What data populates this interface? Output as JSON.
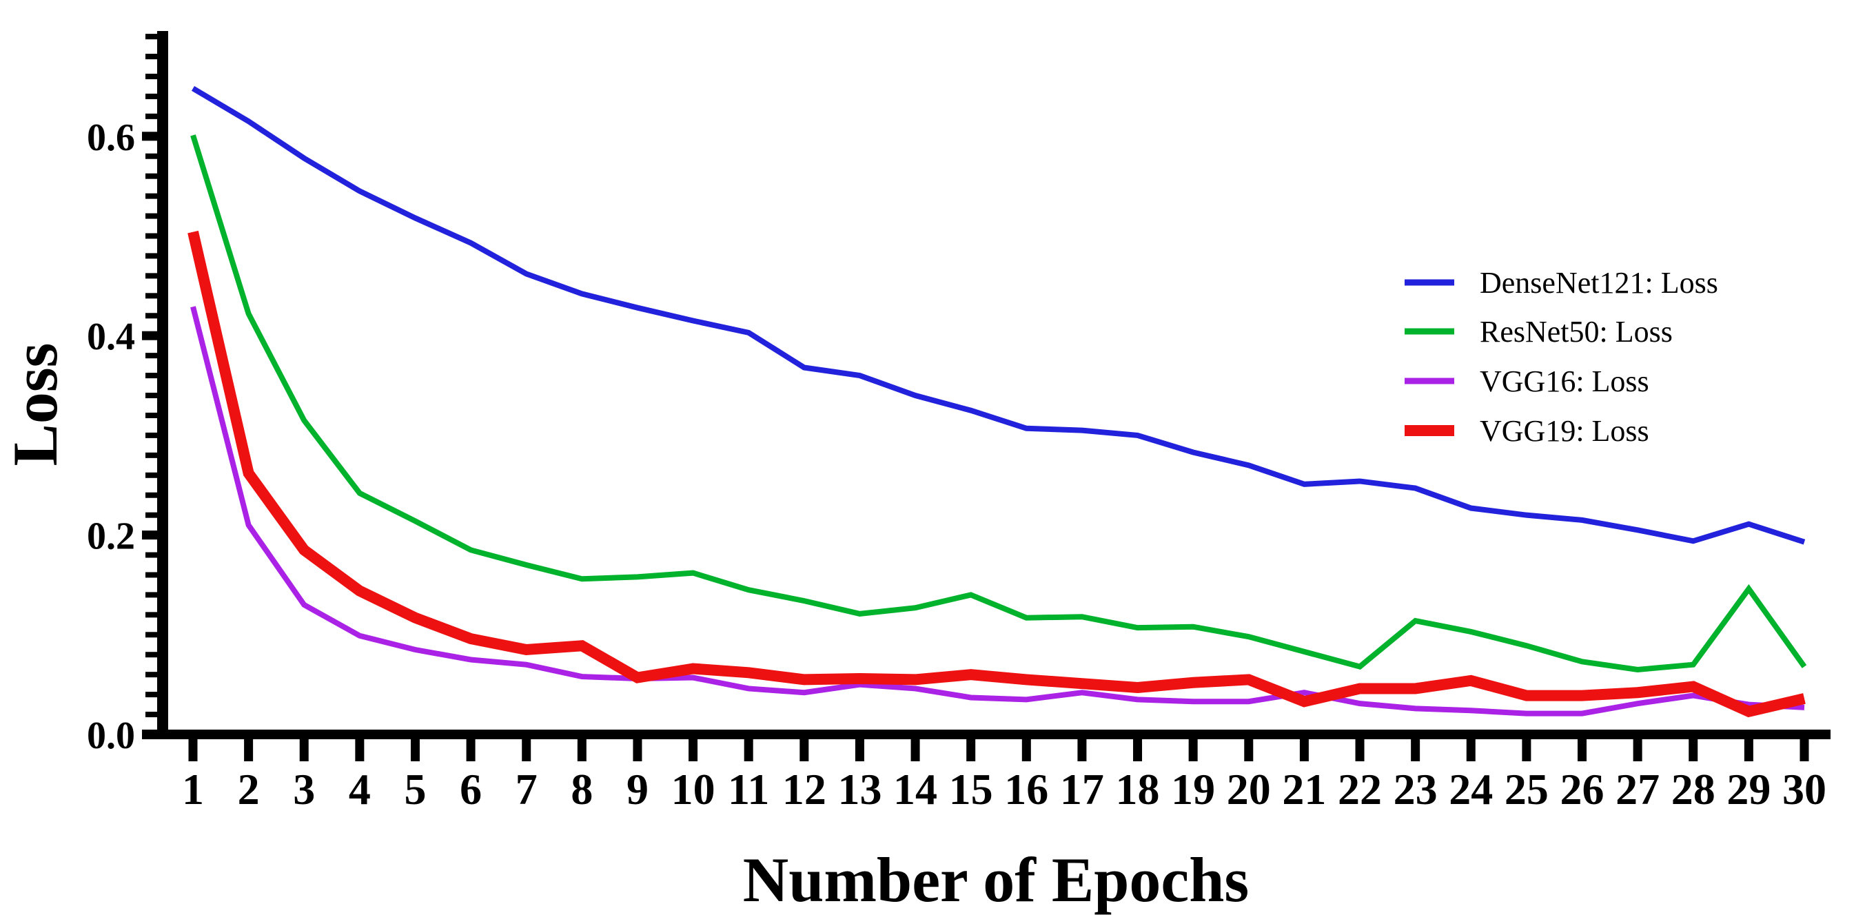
{
  "chart_data": {
    "type": "line",
    "title": "",
    "xlabel": "Number of Epochs",
    "ylabel": "Loss",
    "x": [
      1,
      2,
      3,
      4,
      5,
      6,
      7,
      8,
      9,
      10,
      11,
      12,
      13,
      14,
      15,
      16,
      17,
      18,
      19,
      20,
      21,
      22,
      23,
      24,
      25,
      26,
      27,
      28,
      29,
      30
    ],
    "xlim": [
      1,
      30
    ],
    "ylim": [
      0,
      0.7
    ],
    "y_major_ticks": [
      0.0,
      0.2,
      0.4,
      0.6
    ],
    "y_tick_labels": [
      "0.0",
      "0.2",
      "0.4",
      "0.6"
    ],
    "y_minor_step": 0.02,
    "grid": false,
    "legend_position": "inside-right",
    "axis_color": "#000000",
    "series": [
      {
        "name": "DenseNet121: Loss",
        "color": "#2222dd",
        "width": 8,
        "values": [
          0.648,
          0.615,
          0.578,
          0.545,
          0.518,
          0.493,
          0.462,
          0.442,
          0.428,
          0.415,
          0.403,
          0.368,
          0.36,
          0.34,
          0.325,
          0.307,
          0.305,
          0.3,
          0.283,
          0.27,
          0.251,
          0.254,
          0.247,
          0.227,
          0.22,
          0.215,
          0.205,
          0.194,
          0.211,
          0.193
        ]
      },
      {
        "name": "ResNet50: Loss",
        "color": "#00b22c",
        "width": 8,
        "values": [
          0.601,
          0.422,
          0.315,
          0.242,
          0.214,
          0.185,
          0.17,
          0.156,
          0.158,
          0.162,
          0.145,
          0.134,
          0.121,
          0.127,
          0.14,
          0.117,
          0.118,
          0.107,
          0.108,
          0.098,
          0.083,
          0.068,
          0.114,
          0.103,
          0.089,
          0.073,
          0.065,
          0.07,
          0.146,
          0.068
        ]
      },
      {
        "name": "VGG16: Loss",
        "color": "#aa22e6",
        "width": 8,
        "values": [
          0.429,
          0.21,
          0.13,
          0.099,
          0.085,
          0.075,
          0.07,
          0.058,
          0.056,
          0.057,
          0.046,
          0.042,
          0.05,
          0.046,
          0.037,
          0.035,
          0.042,
          0.035,
          0.033,
          0.033,
          0.042,
          0.031,
          0.026,
          0.024,
          0.021,
          0.021,
          0.031,
          0.039,
          0.03,
          0.027
        ]
      },
      {
        "name": "VGG19: Loss",
        "color": "#ee1111",
        "width": 16,
        "values": [
          0.504,
          0.262,
          0.185,
          0.144,
          0.117,
          0.096,
          0.085,
          0.089,
          0.057,
          0.066,
          0.062,
          0.055,
          0.056,
          0.055,
          0.06,
          0.055,
          0.051,
          0.047,
          0.052,
          0.055,
          0.033,
          0.046,
          0.046,
          0.054,
          0.039,
          0.039,
          0.042,
          0.048,
          0.023,
          0.036
        ]
      }
    ]
  }
}
